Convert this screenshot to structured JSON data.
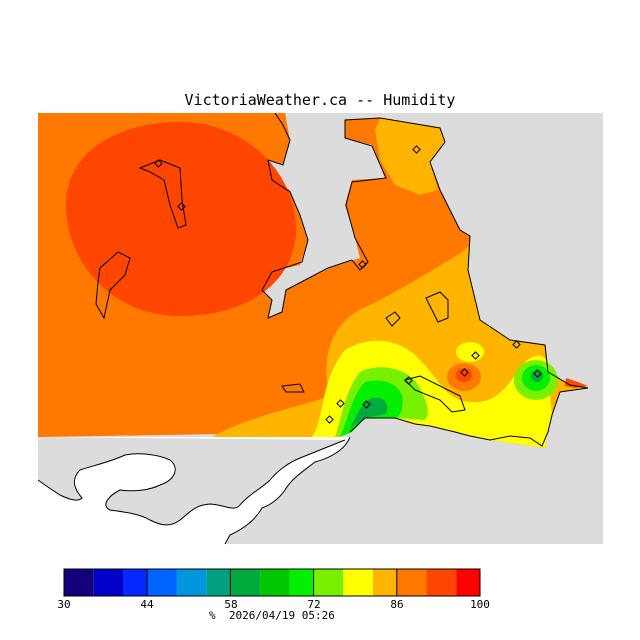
{
  "title": "VictoriaWeather.ca -- Humidity",
  "legend": {
    "unit": "%",
    "timestamp": "2026/04/19 05:26",
    "tick_labels": [
      "30",
      "44",
      "58",
      "72",
      "86",
      "100"
    ],
    "bands": [
      {
        "from": 30,
        "to": 35,
        "color": "#14007a"
      },
      {
        "from": 35,
        "to": 40,
        "color": "#0000c8"
      },
      {
        "from": 40,
        "to": 44,
        "color": "#0028ff"
      },
      {
        "from": 44,
        "to": 49,
        "color": "#0064ff"
      },
      {
        "from": 49,
        "to": 54,
        "color": "#0096dc"
      },
      {
        "from": 54,
        "to": 58,
        "color": "#00a080"
      },
      {
        "from": 58,
        "to": 63,
        "color": "#00aa3c"
      },
      {
        "from": 63,
        "to": 68,
        "color": "#00c800"
      },
      {
        "from": 68,
        "to": 72,
        "color": "#00f000"
      },
      {
        "from": 72,
        "to": 77,
        "color": "#78f000"
      },
      {
        "from": 77,
        "to": 82,
        "color": "#ffff00"
      },
      {
        "from": 82,
        "to": 86,
        "color": "#ffb400"
      },
      {
        "from": 86,
        "to": 91,
        "color": "#ff7800"
      },
      {
        "from": 91,
        "to": 96,
        "color": "#ff4600"
      },
      {
        "from": 96,
        "to": 100,
        "color": "#ff0000"
      }
    ]
  },
  "colors": {
    "background_land": "#dcdcdc",
    "orange": "#ff7800",
    "red_orange": "#ff4600",
    "amber": "#ffb400",
    "yellow": "#ffff00",
    "lime": "#78f000",
    "green": "#00f000",
    "dark_green": "#00aa3c",
    "coast": "#000000"
  }
}
